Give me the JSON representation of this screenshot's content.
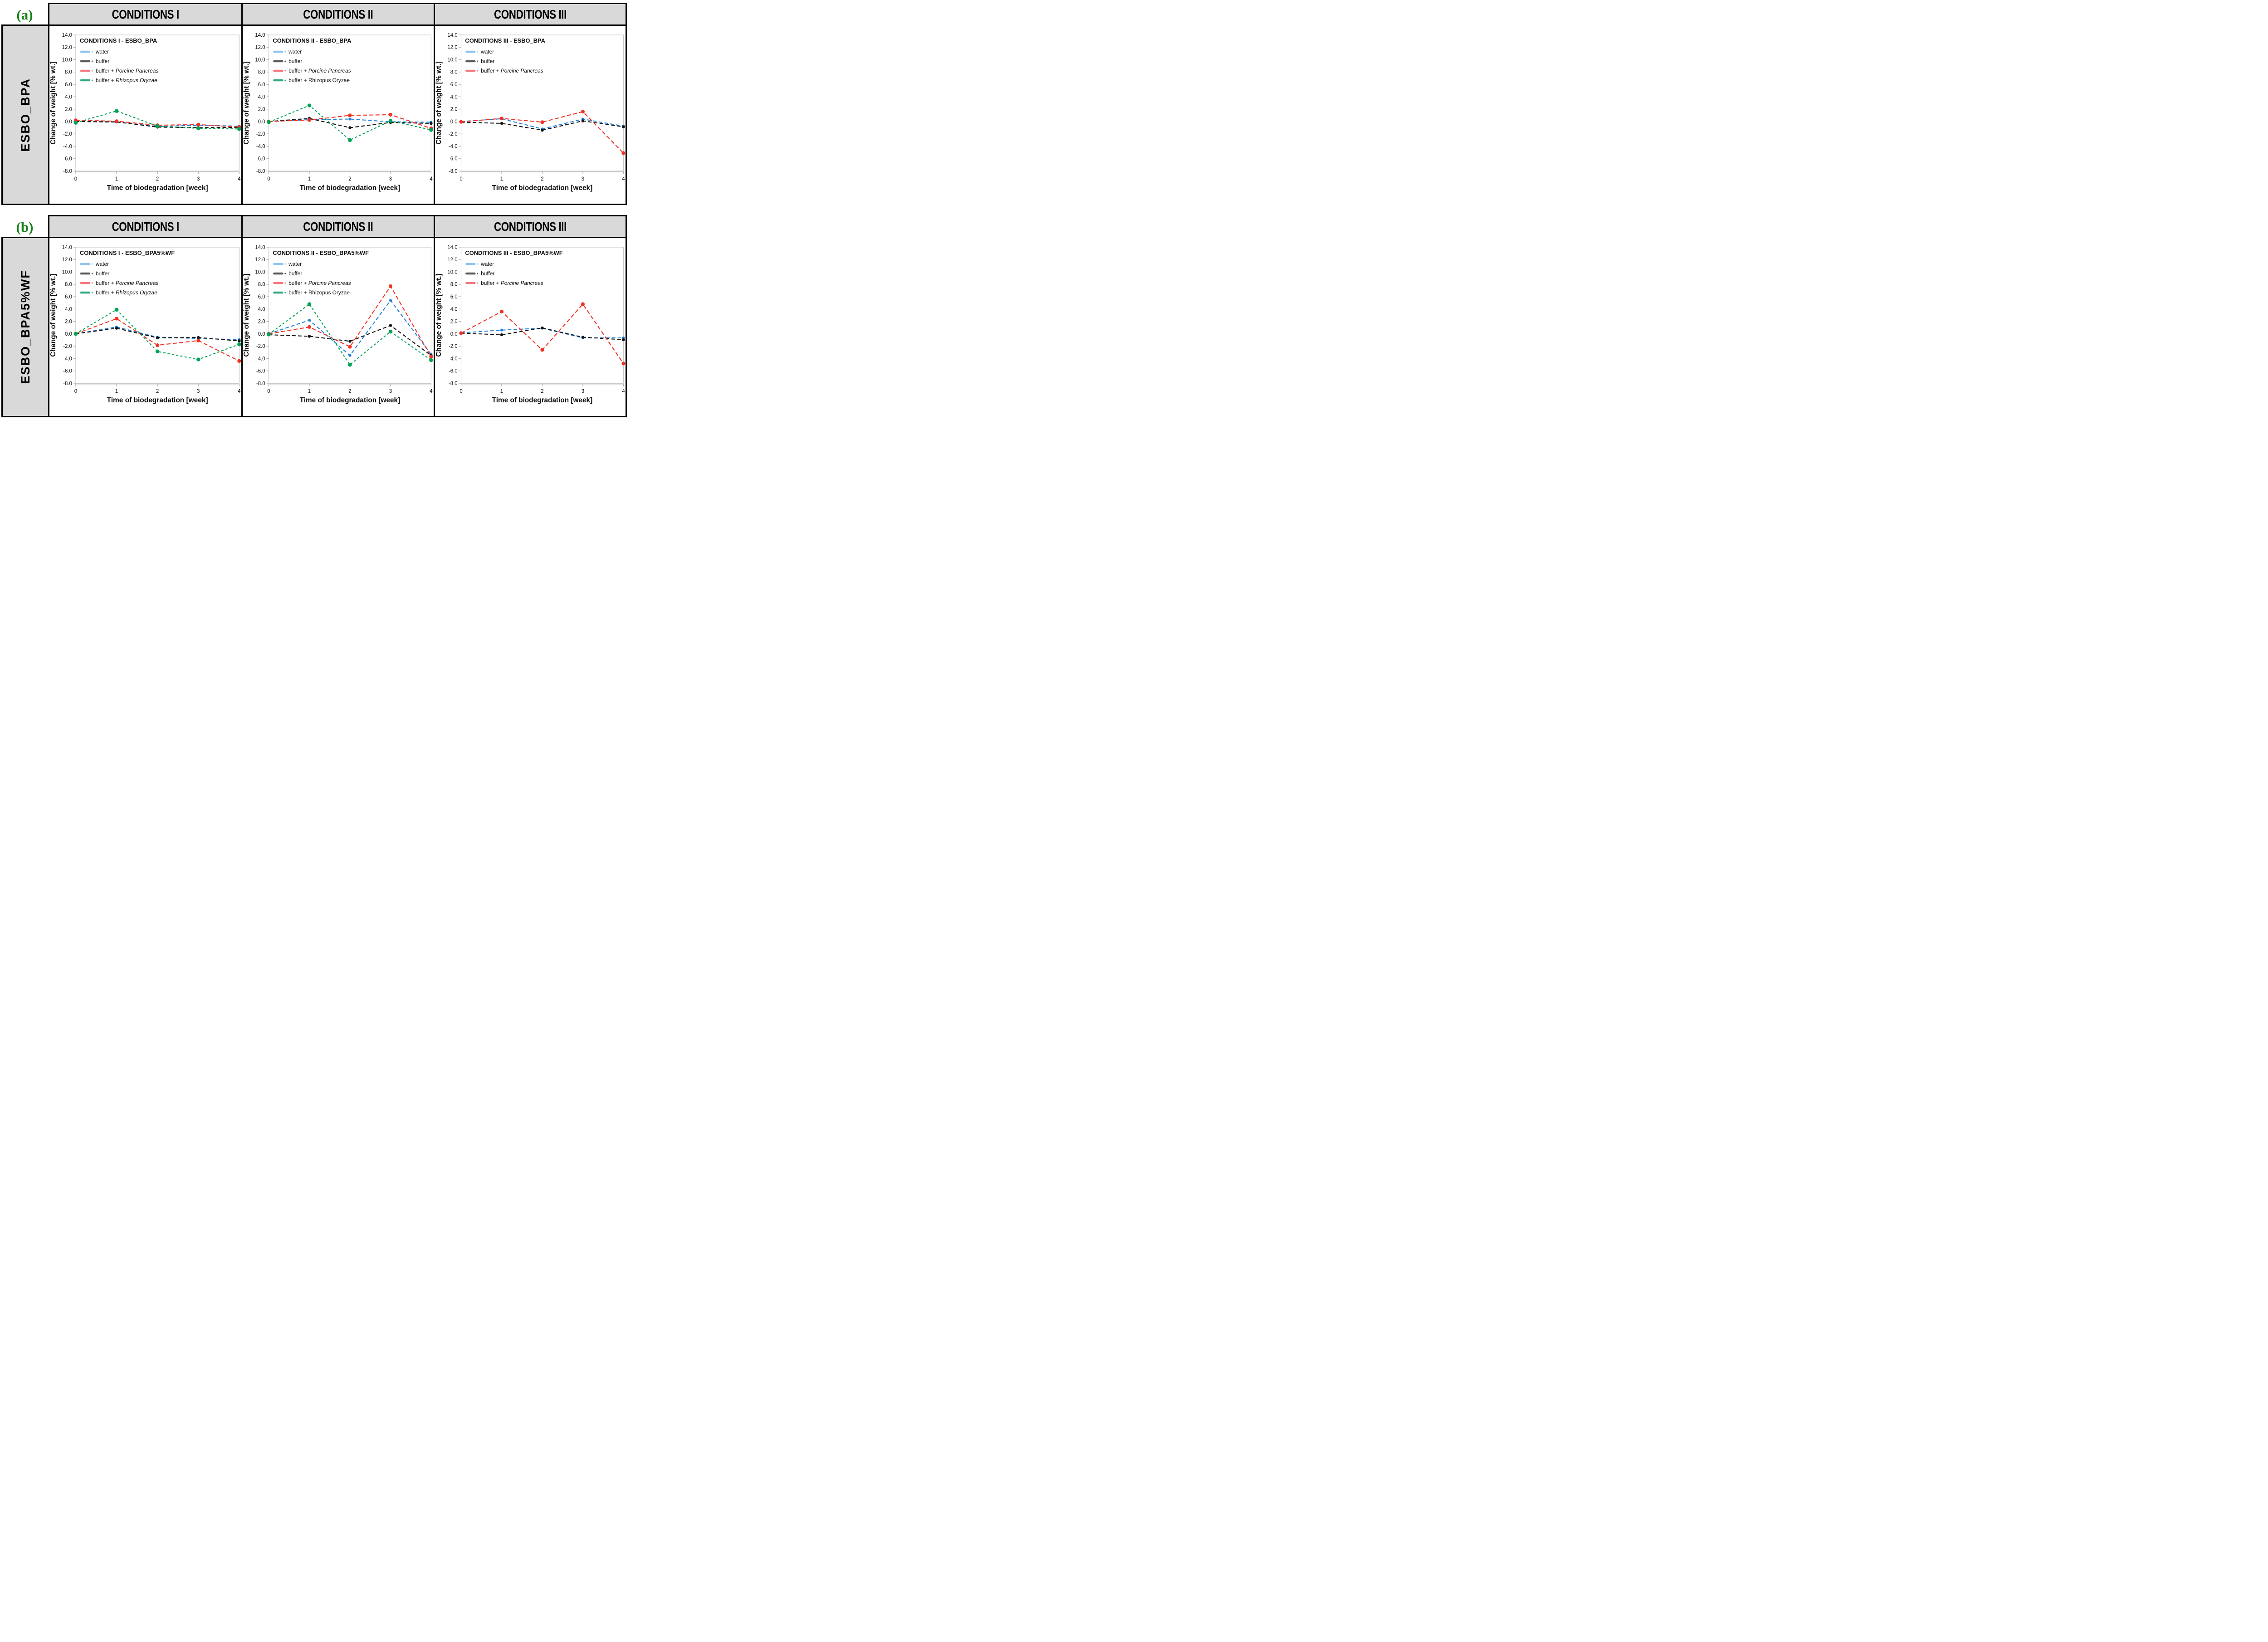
{
  "figure": {
    "tag_color": "#148014",
    "panels": [
      {
        "tag": "(a)",
        "row_label": "ESBO_BPA",
        "col_headers": [
          "CONDITIONS I",
          "CONDITIONS II",
          "CONDITIONS III"
        ]
      },
      {
        "tag": "(b)",
        "row_label": "ESBO_BPA5%WF",
        "col_headers": [
          "CONDITIONS I",
          "CONDITIONS II",
          "CONDITIONS III"
        ]
      }
    ]
  },
  "axes": {
    "xlabel": "Time of biodegradation [week]",
    "ylabel": "Change of weight [% wt.]",
    "xticks": [
      0,
      1,
      2,
      3,
      4
    ],
    "ylim": [
      -8,
      14
    ],
    "ytick_step": 2
  },
  "chart_data": [
    {
      "type": "line",
      "title": "CONDITIONS I - ESBO_BPA",
      "x": [
        0,
        1,
        2,
        3,
        4
      ],
      "series": [
        {
          "key": "water",
          "label_prefix": "water",
          "label_species": "",
          "species_italic": false,
          "color": "#2380D8",
          "legend_color": "#92C3EA",
          "values": [
            0.0,
            -0.1,
            -0.8,
            -0.6,
            -0.75
          ]
        },
        {
          "key": "buffer",
          "label_prefix": "buffer",
          "label_species": "",
          "species_italic": false,
          "color": "#151515",
          "legend_color": "#595959",
          "values": [
            0.0,
            -0.05,
            -0.9,
            -1.0,
            -0.95
          ]
        },
        {
          "key": "pp",
          "label_prefix": "buffer + ",
          "label_species": "Porcine Pancreas",
          "species_italic": true,
          "color": "#F23224",
          "legend_color": "#F4777E",
          "values": [
            0.2,
            0.05,
            -0.6,
            -0.5,
            -0.9
          ]
        },
        {
          "key": "ro",
          "label_prefix": "buffer + ",
          "label_species": "Rhizopus Oryzae",
          "species_italic": true,
          "color": "#00A453",
          "legend_color": "#32A97A",
          "values": [
            -0.2,
            1.7,
            -0.75,
            -1.1,
            -1.2
          ]
        }
      ]
    },
    {
      "type": "line",
      "title": "CONDITIONS II - ESBO_BPA",
      "x": [
        0,
        1,
        2,
        3,
        4
      ],
      "series": [
        {
          "key": "water",
          "label_prefix": "water",
          "label_species": "",
          "species_italic": false,
          "color": "#2380D8",
          "legend_color": "#92C3EA",
          "values": [
            0.0,
            0.3,
            0.4,
            -0.05,
            -0.1
          ]
        },
        {
          "key": "buffer",
          "label_prefix": "buffer",
          "label_species": "",
          "species_italic": false,
          "color": "#151515",
          "legend_color": "#595959",
          "values": [
            0.0,
            0.5,
            -1.0,
            -0.15,
            -0.3
          ]
        },
        {
          "key": "pp",
          "label_prefix": "buffer + ",
          "label_species": "Porcine Pancreas",
          "species_italic": true,
          "color": "#F23224",
          "legend_color": "#F4777E",
          "values": [
            0.0,
            0.25,
            1.0,
            1.1,
            -1.1
          ]
        },
        {
          "key": "ro",
          "label_prefix": "buffer + ",
          "label_species": "Rhizopus Oryzae",
          "species_italic": false,
          "color": "#00A453",
          "legend_color": "#32A97A",
          "values": [
            -0.1,
            2.6,
            -3.0,
            0.1,
            -1.35
          ]
        }
      ]
    },
    {
      "type": "line",
      "title": "CONDITIONS III - ESBO_BPA",
      "x": [
        0,
        1,
        2,
        3,
        4
      ],
      "series": [
        {
          "key": "water",
          "label_prefix": "water",
          "label_species": "",
          "species_italic": false,
          "color": "#2380D8",
          "legend_color": "#92C3EA",
          "values": [
            0.0,
            0.45,
            -1.2,
            0.4,
            -0.75
          ]
        },
        {
          "key": "buffer",
          "label_prefix": "buffer",
          "label_species": "",
          "species_italic": false,
          "color": "#151515",
          "legend_color": "#595959",
          "values": [
            -0.1,
            -0.3,
            -1.4,
            0.1,
            -0.85
          ]
        },
        {
          "key": "pp",
          "label_prefix": "buffer + ",
          "label_species": "Porcine Pancreas",
          "species_italic": true,
          "color": "#F23224",
          "legend_color": "#F4777E",
          "values": [
            -0.05,
            0.5,
            -0.1,
            1.6,
            -5.1
          ]
        }
      ]
    },
    {
      "type": "line",
      "title": "CONDITIONS I - ESBO_BPA5%WF",
      "x": [
        0,
        1,
        2,
        3,
        4
      ],
      "series": [
        {
          "key": "water",
          "label_prefix": "water",
          "label_species": "",
          "species_italic": false,
          "color": "#2380D8",
          "legend_color": "#92C3EA",
          "values": [
            0.0,
            1.1,
            -0.55,
            -0.75,
            -0.95
          ]
        },
        {
          "key": "buffer",
          "label_prefix": "buffer",
          "label_species": "",
          "species_italic": false,
          "color": "#151515",
          "legend_color": "#595959",
          "values": [
            0.0,
            0.9,
            -0.65,
            -0.6,
            -1.15
          ]
        },
        {
          "key": "pp",
          "label_prefix": "buffer + ",
          "label_species": "Porcine Pancreas",
          "species_italic": true,
          "color": "#F23224",
          "legend_color": "#F4777E",
          "values": [
            0.0,
            2.45,
            -1.85,
            -1.1,
            -4.4
          ]
        },
        {
          "key": "ro",
          "label_prefix": "buffer + ",
          "label_species": "Rhizopus Oryzae",
          "species_italic": true,
          "color": "#00A453",
          "legend_color": "#32A97A",
          "values": [
            0.0,
            3.9,
            -2.85,
            -4.15,
            -1.7
          ]
        }
      ]
    },
    {
      "type": "line",
      "title": "CONDITIONS II - ESBO_BPA5%WF",
      "x": [
        0,
        1,
        2,
        3,
        4
      ],
      "series": [
        {
          "key": "water",
          "label_prefix": "water",
          "label_species": "",
          "species_italic": false,
          "color": "#2380D8",
          "legend_color": "#92C3EA",
          "values": [
            0.0,
            2.2,
            -3.5,
            5.4,
            -3.3
          ]
        },
        {
          "key": "buffer",
          "label_prefix": "buffer",
          "label_species": "",
          "species_italic": false,
          "color": "#151515",
          "legend_color": "#595959",
          "values": [
            -0.15,
            -0.4,
            -1.2,
            1.35,
            -3.5
          ]
        },
        {
          "key": "pp",
          "label_prefix": "buffer + ",
          "label_species": "Porcine Pancreas",
          "species_italic": true,
          "color": "#F23224",
          "legend_color": "#F4777E",
          "values": [
            0.0,
            1.1,
            -2.1,
            7.7,
            -3.7
          ]
        },
        {
          "key": "ro",
          "label_prefix": "buffer + ",
          "label_species": "Rhizopus Oryzae",
          "species_italic": false,
          "color": "#00A453",
          "legend_color": "#32A97A",
          "values": [
            -0.1,
            4.8,
            -5.0,
            0.35,
            -4.25
          ]
        }
      ]
    },
    {
      "type": "line",
      "title": "CONDITIONS III - ESBO_BPA5%WF",
      "x": [
        0,
        1,
        2,
        3,
        4
      ],
      "series": [
        {
          "key": "water",
          "label_prefix": "water",
          "label_species": "",
          "species_italic": false,
          "color": "#2380D8",
          "legend_color": "#92C3EA",
          "values": [
            0.15,
            0.6,
            0.9,
            -0.65,
            -0.65
          ]
        },
        {
          "key": "buffer",
          "label_prefix": "buffer",
          "label_species": "",
          "species_italic": false,
          "color": "#151515",
          "legend_color": "#595959",
          "values": [
            0.1,
            -0.15,
            0.95,
            -0.55,
            -0.95
          ]
        },
        {
          "key": "pp",
          "label_prefix": "buffer + ",
          "label_species": "Porcine Pancreas",
          "species_italic": true,
          "color": "#F23224",
          "legend_color": "#F4777E",
          "values": [
            0.1,
            3.6,
            -2.6,
            4.8,
            -4.8
          ]
        }
      ]
    }
  ]
}
